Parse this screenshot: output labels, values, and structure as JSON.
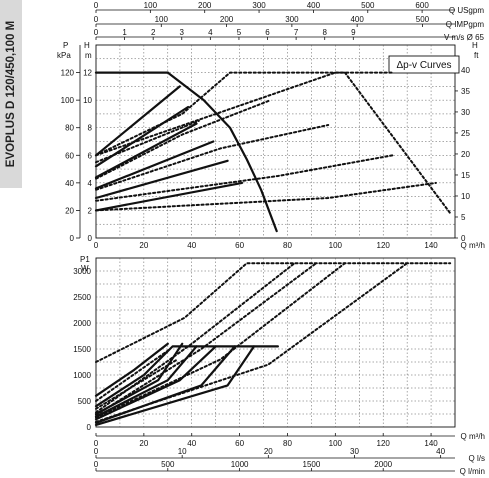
{
  "model_label": "EVOPLUS D 120/450,100 M",
  "top_scales": {
    "usgpm": {
      "label": "Q USgpm",
      "ticks": [
        0,
        100,
        200,
        300,
        400,
        500,
        600
      ]
    },
    "impgpm": {
      "label": "Q IMPgpm",
      "ticks": [
        0,
        100,
        200,
        300,
        400,
        500
      ]
    },
    "velocity": {
      "label": "V m/s Ø 65",
      "ticks": [
        0,
        1,
        2,
        3,
        4,
        5,
        6,
        7,
        8,
        9
      ]
    }
  },
  "bottom_scales": {
    "ls": {
      "label": "Q l/s",
      "ticks": [
        0,
        10,
        20,
        30,
        40
      ]
    },
    "lmin": {
      "label": "Q l/min",
      "ticks": [
        0,
        500,
        1000,
        1500,
        2000
      ]
    }
  },
  "chart_data": [
    {
      "type": "line",
      "title": "",
      "box_label": "Δp-v Curves",
      "x_label": "Q m³/h",
      "y_label_left_units": [
        "P",
        "kPa"
      ],
      "y_label_left2_units": [
        "H",
        "m"
      ],
      "y_label_right_units": [
        "H",
        "ft"
      ],
      "xlim": [
        0,
        150
      ],
      "ylim_m": [
        0,
        14
      ],
      "ylim_kpa": [
        0,
        140
      ],
      "ylim_ft": [
        0,
        45
      ],
      "x_ticks": [
        0,
        20,
        40,
        60,
        80,
        100,
        120,
        140
      ],
      "y_ticks_kpa": [
        0,
        20,
        40,
        60,
        80,
        100,
        120
      ],
      "y_ticks_m": [
        0,
        2,
        4,
        6,
        8,
        10,
        12
      ],
      "y_ticks_ft": [
        0,
        5,
        10,
        15,
        20,
        25,
        30,
        35,
        40
      ],
      "solid_series": [
        {
          "x": [
            0,
            30
          ],
          "y": [
            12,
            12
          ]
        },
        {
          "x": [
            0,
            35
          ],
          "y": [
            6,
            11
          ]
        },
        {
          "x": [
            0,
            38.5
          ],
          "y": [
            5.2,
            9.5
          ]
        },
        {
          "x": [
            0,
            42
          ],
          "y": [
            4.4,
            8.3
          ]
        },
        {
          "x": [
            0,
            49
          ],
          "y": [
            3.6,
            7.0
          ]
        },
        {
          "x": [
            0,
            55
          ],
          "y": [
            2.9,
            5.6
          ]
        },
        {
          "x": [
            0,
            61
          ],
          "y": [
            2.0,
            4.0
          ]
        },
        {
          "x": [
            30,
            45,
            56,
            63,
            69,
            75.5
          ],
          "y": [
            12,
            10,
            8,
            5.7,
            3.5,
            0.5
          ]
        }
      ],
      "dotted_series": [
        {
          "x": [
            0,
            100,
            124
          ],
          "y": [
            6,
            12,
            12
          ]
        },
        {
          "x": [
            0,
            36,
            56,
            104,
            148
          ],
          "y": [
            6,
            9,
            12,
            12,
            1.8
          ]
        },
        {
          "x": [
            0,
            43
          ],
          "y": [
            5.5,
            8.5
          ]
        },
        {
          "x": [
            0,
            36,
            73
          ],
          "y": [
            4.3,
            7.5,
            10.0
          ]
        },
        {
          "x": [
            0,
            52,
            97
          ],
          "y": [
            3.5,
            6.5,
            8.2
          ]
        },
        {
          "x": [
            0,
            76,
            124
          ],
          "y": [
            2.7,
            4.5,
            6.0
          ]
        },
        {
          "x": [
            0,
            97,
            142
          ],
          "y": [
            2.0,
            2.9,
            4.0
          ]
        }
      ]
    },
    {
      "type": "line",
      "x_label": "Q m³/h",
      "y_label_units": [
        "P1",
        "W"
      ],
      "xlim": [
        0,
        150
      ],
      "ylim": [
        0,
        3250
      ],
      "x_ticks": [
        0,
        20,
        40,
        60,
        80,
        100,
        120,
        140
      ],
      "y_ticks": [
        0,
        500,
        1000,
        1500,
        2000,
        2500,
        3000
      ],
      "solid_series": [
        {
          "x": [
            0,
            16,
            30
          ],
          "y": [
            600,
            1100,
            1600
          ]
        },
        {
          "x": [
            0,
            20,
            32,
            76
          ],
          "y": [
            400,
            1000,
            1550,
            1550
          ]
        },
        {
          "x": [
            0,
            26,
            36
          ],
          "y": [
            250,
            900,
            1600
          ]
        },
        {
          "x": [
            0,
            30,
            42
          ],
          "y": [
            200,
            900,
            1550
          ]
        },
        {
          "x": [
            0,
            35,
            50
          ],
          "y": [
            150,
            900,
            1550
          ]
        },
        {
          "x": [
            0,
            44,
            58
          ],
          "y": [
            80,
            800,
            1550
          ]
        },
        {
          "x": [
            0,
            55,
            66
          ],
          "y": [
            40,
            800,
            1550
          ]
        }
      ],
      "dotted_series": [
        {
          "x": [
            0,
            37,
            63,
            148
          ],
          "y": [
            1250,
            2100,
            3150,
            3150
          ]
        },
        {
          "x": [
            0,
            40,
            83
          ],
          "y": [
            280,
            1600,
            3150
          ]
        },
        {
          "x": [
            0,
            44,
            92
          ],
          "y": [
            230,
            1500,
            3150
          ]
        },
        {
          "x": [
            0,
            52,
            104
          ],
          "y": [
            180,
            1300,
            3150
          ]
        },
        {
          "x": [
            0,
            72,
            130
          ],
          "y": [
            100,
            1200,
            3150
          ]
        },
        {
          "x": [
            0,
            31
          ],
          "y": [
            500,
            1500
          ]
        },
        {
          "x": [
            0,
            34
          ],
          "y": [
            350,
            1300
          ]
        }
      ]
    }
  ]
}
